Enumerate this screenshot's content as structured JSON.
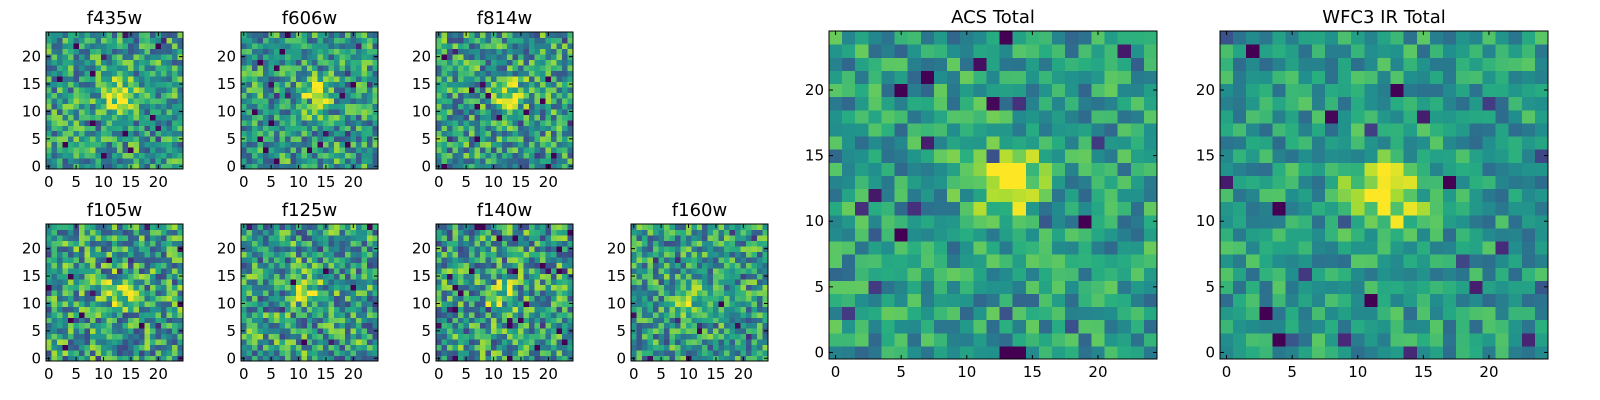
{
  "chart_data": [
    {
      "type": "heatmap",
      "title": "f435w",
      "x_ticks": [
        0,
        5,
        10,
        15,
        20
      ],
      "y_ticks": [
        0,
        5,
        10,
        15,
        20
      ],
      "xlim": [
        -0.5,
        24.5
      ],
      "ylim": [
        -0.5,
        24.5
      ],
      "grid_size": 25,
      "colormap": "viridis",
      "source_center": [
        13,
        13
      ],
      "source_strength": 0.45,
      "noise_level": 0.3,
      "seed": 11
    },
    {
      "type": "heatmap",
      "title": "f606w",
      "x_ticks": [
        0,
        5,
        10,
        15,
        20
      ],
      "y_ticks": [
        0,
        5,
        10,
        15,
        20
      ],
      "xlim": [
        -0.5,
        24.5
      ],
      "ylim": [
        -0.5,
        24.5
      ],
      "grid_size": 25,
      "colormap": "viridis",
      "source_center": [
        13,
        13
      ],
      "source_strength": 0.4,
      "noise_level": 0.3,
      "seed": 23
    },
    {
      "type": "heatmap",
      "title": "f814w",
      "x_ticks": [
        0,
        5,
        10,
        15,
        20
      ],
      "y_ticks": [
        0,
        5,
        10,
        15,
        20
      ],
      "xlim": [
        -0.5,
        24.5
      ],
      "ylim": [
        -0.5,
        24.5
      ],
      "grid_size": 25,
      "colormap": "viridis",
      "source_center": [
        13,
        13
      ],
      "source_strength": 0.4,
      "noise_level": 0.32,
      "seed": 37
    },
    {
      "type": "heatmap",
      "title": "f105w",
      "x_ticks": [
        0,
        5,
        10,
        15,
        20
      ],
      "y_ticks": [
        0,
        5,
        10,
        15,
        20
      ],
      "xlim": [
        -0.5,
        24.5
      ],
      "ylim": [
        -0.5,
        24.5
      ],
      "grid_size": 25,
      "colormap": "viridis",
      "source_center": [
        13,
        12
      ],
      "source_strength": 0.3,
      "noise_level": 0.34,
      "seed": 41
    },
    {
      "type": "heatmap",
      "title": "f125w",
      "x_ticks": [
        0,
        5,
        10,
        15,
        20
      ],
      "y_ticks": [
        0,
        5,
        10,
        15,
        20
      ],
      "xlim": [
        -0.5,
        24.5
      ],
      "ylim": [
        -0.5,
        24.5
      ],
      "grid_size": 25,
      "colormap": "viridis",
      "source_center": [
        12,
        12
      ],
      "source_strength": 0.3,
      "noise_level": 0.34,
      "seed": 53
    },
    {
      "type": "heatmap",
      "title": "f140w",
      "x_ticks": [
        0,
        5,
        10,
        15,
        20
      ],
      "y_ticks": [
        0,
        5,
        10,
        15,
        20
      ],
      "xlim": [
        -0.5,
        24.5
      ],
      "ylim": [
        -0.5,
        24.5
      ],
      "grid_size": 25,
      "colormap": "viridis",
      "source_center": [
        11,
        12
      ],
      "source_strength": 0.3,
      "noise_level": 0.34,
      "seed": 67
    },
    {
      "type": "heatmap",
      "title": "f160w",
      "x_ticks": [
        0,
        5,
        10,
        15,
        20
      ],
      "y_ticks": [
        0,
        5,
        10,
        15,
        20
      ],
      "xlim": [
        -0.5,
        24.5
      ],
      "ylim": [
        -0.5,
        24.5
      ],
      "grid_size": 25,
      "colormap": "viridis",
      "source_center": [
        10,
        11
      ],
      "source_strength": 0.35,
      "noise_level": 0.3,
      "seed": 79
    },
    {
      "type": "heatmap",
      "title": "ACS Total",
      "x_ticks": [
        0,
        5,
        10,
        15,
        20
      ],
      "y_ticks": [
        0,
        5,
        10,
        15,
        20
      ],
      "xlim": [
        -0.5,
        24.5
      ],
      "ylim": [
        -0.5,
        24.5
      ],
      "grid_size": 25,
      "colormap": "viridis",
      "source_center": [
        13,
        13
      ],
      "source_strength": 0.45,
      "noise_level": 0.22,
      "seed": 97
    },
    {
      "type": "heatmap",
      "title": "WFC3 IR Total",
      "x_ticks": [
        0,
        5,
        10,
        15,
        20
      ],
      "y_ticks": [
        0,
        5,
        10,
        15,
        20
      ],
      "xlim": [
        -0.5,
        24.5
      ],
      "ylim": [
        -0.5,
        24.5
      ],
      "grid_size": 25,
      "colormap": "viridis",
      "source_center": [
        12,
        12
      ],
      "source_strength": 0.45,
      "noise_level": 0.2,
      "seed": 131
    }
  ]
}
